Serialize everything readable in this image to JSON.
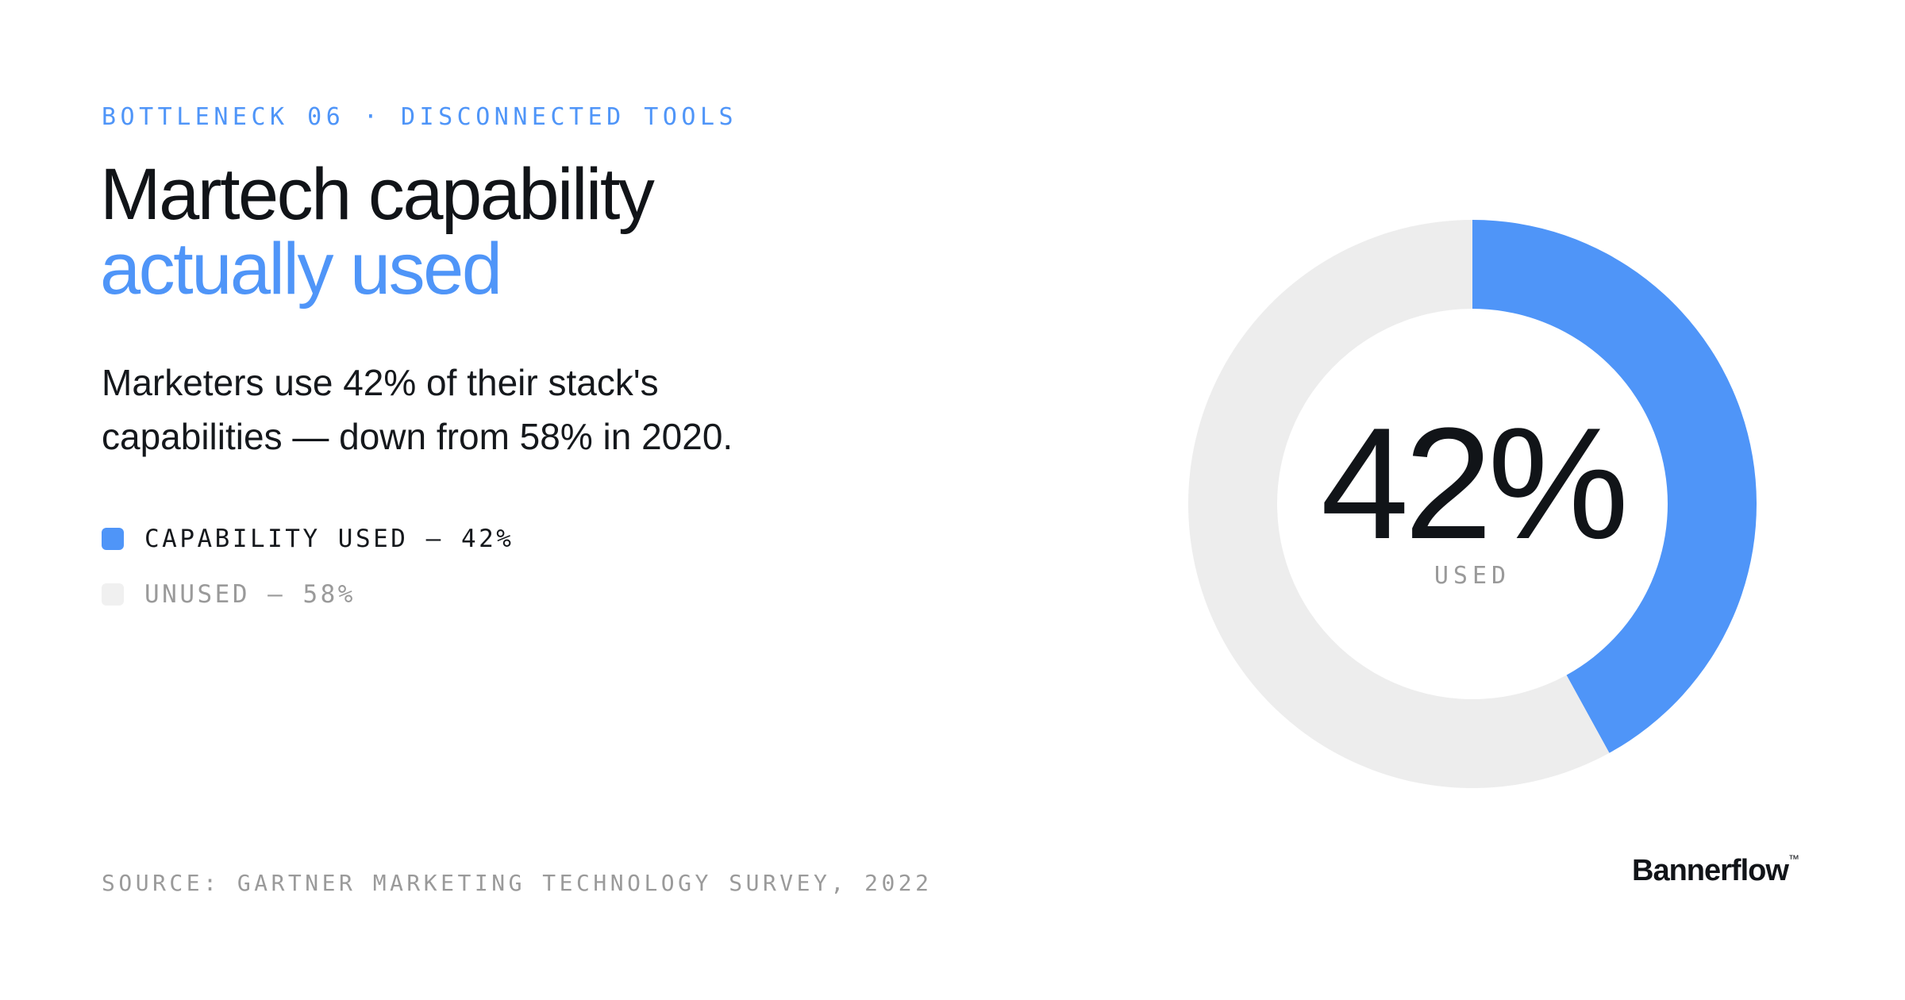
{
  "eyebrow": "BOTTLENECK 06 · DISCONNECTED TOOLS",
  "title": {
    "line1": "Martech capability",
    "line2": "actually used"
  },
  "description": "Marketers use 42% of their stack's capabilities — down from 58% in 2020.",
  "legend": [
    {
      "label": "CAPABILITY USED — 42%",
      "color": "#4f95f8",
      "text_color": "#15181c"
    },
    {
      "label": "UNUSED — 58%",
      "color": "#f0f0f0",
      "text_color": "#9a9a9a"
    }
  ],
  "center": {
    "value": "42%",
    "label": "USED"
  },
  "source": "SOURCE: GARTNER MARKETING TECHNOLOGY SURVEY, 2022",
  "brand": {
    "name": "Bannerflow",
    "tm": "™"
  },
  "colors": {
    "accent": "#4f95f8",
    "track": "#ededed",
    "eyebrow": "#4f95f8",
    "title_dark": "#111418",
    "muted": "#9a9a9a"
  },
  "chart_data": {
    "type": "pie",
    "variant": "donut",
    "categories": [
      "Capability used",
      "Unused"
    ],
    "values": [
      42,
      58
    ],
    "colors": [
      "#4f95f8",
      "#ededed"
    ],
    "start": "top",
    "direction": "clockwise"
  }
}
